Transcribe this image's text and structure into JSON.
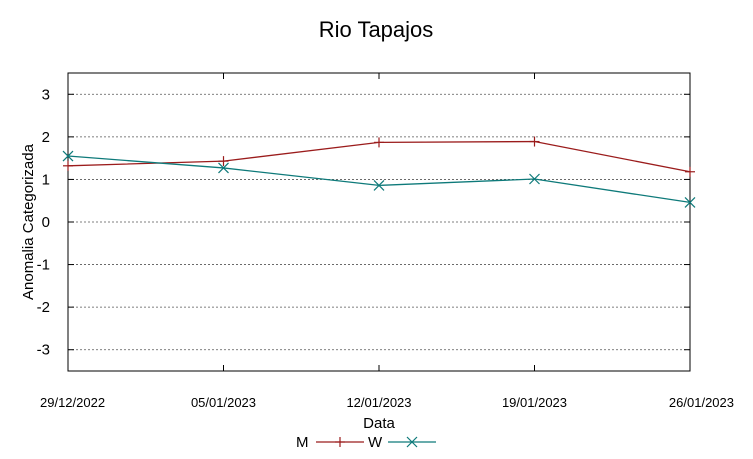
{
  "chart_data": {
    "type": "line",
    "title": "Rio Tapajos",
    "xlabel": "Data",
    "ylabel": "Anomalia Categorizada",
    "categories": [
      "29/12/2022",
      "05/01/2023",
      "12/01/2023",
      "19/01/2023",
      "26/01/2023"
    ],
    "ylim": [
      -3.5,
      3.5
    ],
    "yticks": [
      "3",
      "2",
      "1",
      "0",
      "-1",
      "-2",
      "-3"
    ],
    "ytick_values": [
      3,
      2,
      1,
      0,
      -1,
      -2,
      -3
    ],
    "grid": true,
    "legend_position": "bottom-center",
    "series": [
      {
        "name": "M",
        "color": "#9b1c1c",
        "marker": "plus",
        "values": [
          1.32,
          1.43,
          1.87,
          1.89,
          1.18
        ]
      },
      {
        "name": "W",
        "color": "#0e7a7a",
        "marker": "cross",
        "values": [
          1.55,
          1.27,
          0.86,
          1.01,
          0.46
        ]
      }
    ]
  }
}
